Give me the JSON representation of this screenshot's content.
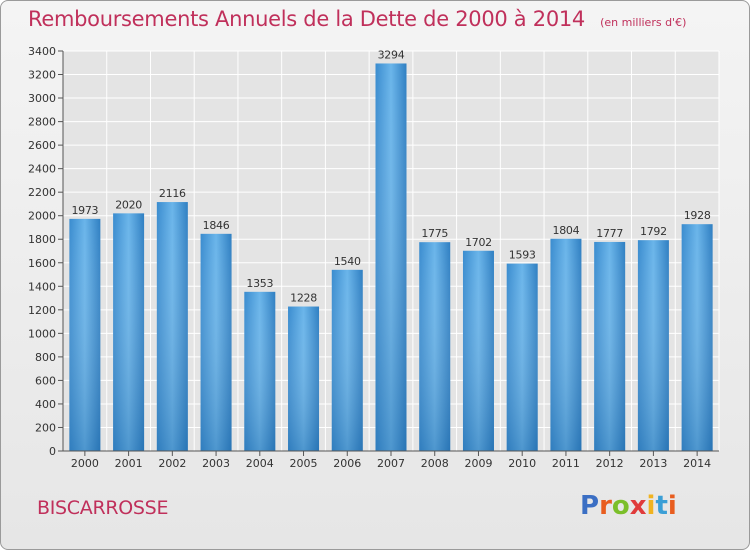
{
  "title": "Remboursements Annuels de la Dette de 2000 à 2014",
  "unit_note": "(en milliers d'€)",
  "town": "BISCARROSSE",
  "logo": {
    "text": "Proxiti",
    "colors": [
      "#3b6fc4",
      "#e85d1f",
      "#7bbf2a",
      "#e03b3b",
      "#f0b320",
      "#3b9fd6",
      "#e85d1f"
    ]
  },
  "colors": {
    "accent": "#c0305b",
    "bar_light": "#6fb8ee",
    "bar_dark": "#2a78ba",
    "grid": "#ffffff"
  },
  "chart_data": {
    "type": "bar",
    "title": "Remboursements Annuels de la Dette de 2000 à 2014",
    "categories": [
      "2000",
      "2001",
      "2002",
      "2003",
      "2004",
      "2005",
      "2006",
      "2007",
      "2008",
      "2009",
      "2010",
      "2011",
      "2012",
      "2013",
      "2014"
    ],
    "values": [
      1973,
      2020,
      2116,
      1846,
      1353,
      1228,
      1540,
      3294,
      1775,
      1702,
      1593,
      1804,
      1777,
      1792,
      1928
    ],
    "ylim": [
      0,
      3400
    ],
    "yticks": [
      0,
      200,
      400,
      600,
      800,
      1000,
      1200,
      1400,
      1600,
      1800,
      2000,
      2200,
      2400,
      2600,
      2800,
      3000,
      3200,
      3400
    ],
    "grid": true,
    "data_labels": true
  }
}
